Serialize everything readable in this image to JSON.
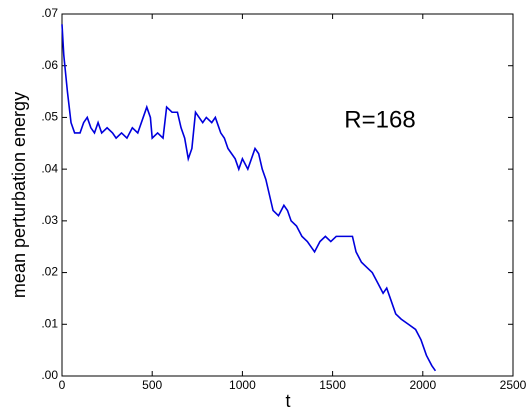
{
  "chart_data": {
    "type": "line",
    "xlabel": "t",
    "ylabel": "mean perturbation energy",
    "annotation": "R=168",
    "x": [
      0,
      10,
      30,
      50,
      70,
      100,
      120,
      140,
      160,
      180,
      200,
      220,
      250,
      280,
      300,
      330,
      360,
      390,
      420,
      450,
      470,
      490,
      500,
      530,
      560,
      580,
      610,
      640,
      660,
      680,
      700,
      720,
      740,
      760,
      780,
      800,
      830,
      850,
      880,
      900,
      920,
      940,
      960,
      980,
      1000,
      1030,
      1050,
      1070,
      1090,
      1110,
      1130,
      1150,
      1170,
      1200,
      1230,
      1250,
      1270,
      1300,
      1330,
      1360,
      1380,
      1400,
      1430,
      1460,
      1490,
      1520,
      1550,
      1580,
      1610,
      1630,
      1660,
      1690,
      1720,
      1750,
      1780,
      1800,
      1820,
      1850,
      1880,
      1920,
      1960,
      1990,
      2020,
      2050,
      2070
    ],
    "series": [
      {
        "name": "energy",
        "color": "#0000dd",
        "values": [
          0.068,
          0.062,
          0.055,
          0.049,
          0.047,
          0.047,
          0.049,
          0.05,
          0.048,
          0.047,
          0.049,
          0.047,
          0.048,
          0.047,
          0.046,
          0.047,
          0.046,
          0.048,
          0.047,
          0.05,
          0.052,
          0.05,
          0.046,
          0.047,
          0.046,
          0.052,
          0.051,
          0.051,
          0.048,
          0.046,
          0.042,
          0.044,
          0.051,
          0.05,
          0.049,
          0.05,
          0.049,
          0.05,
          0.047,
          0.046,
          0.044,
          0.043,
          0.042,
          0.04,
          0.042,
          0.04,
          0.042,
          0.044,
          0.043,
          0.04,
          0.038,
          0.035,
          0.032,
          0.031,
          0.033,
          0.032,
          0.03,
          0.029,
          0.027,
          0.026,
          0.025,
          0.024,
          0.026,
          0.027,
          0.026,
          0.027,
          0.027,
          0.027,
          0.027,
          0.024,
          0.022,
          0.021,
          0.02,
          0.018,
          0.016,
          0.017,
          0.015,
          0.012,
          0.011,
          0.01,
          0.009,
          0.007,
          0.004,
          0.002,
          0.001
        ]
      }
    ],
    "xlim": [
      0,
      2500
    ],
    "xticks": [
      0,
      500,
      1000,
      1500,
      2000,
      2500
    ],
    "ylim": [
      0,
      0.07
    ],
    "yticks": [
      {
        "value": 0,
        "label": ".00"
      },
      {
        "value": 0.01,
        "label": ".01"
      },
      {
        "value": 0.02,
        "label": ".02"
      },
      {
        "value": 0.03,
        "label": ".03"
      },
      {
        "value": 0.04,
        "label": ".04"
      },
      {
        "value": 0.05,
        "label": ".05"
      },
      {
        "value": 0.06,
        "label": ".06"
      },
      {
        "value": 0.07,
        "label": ".07"
      }
    ]
  }
}
